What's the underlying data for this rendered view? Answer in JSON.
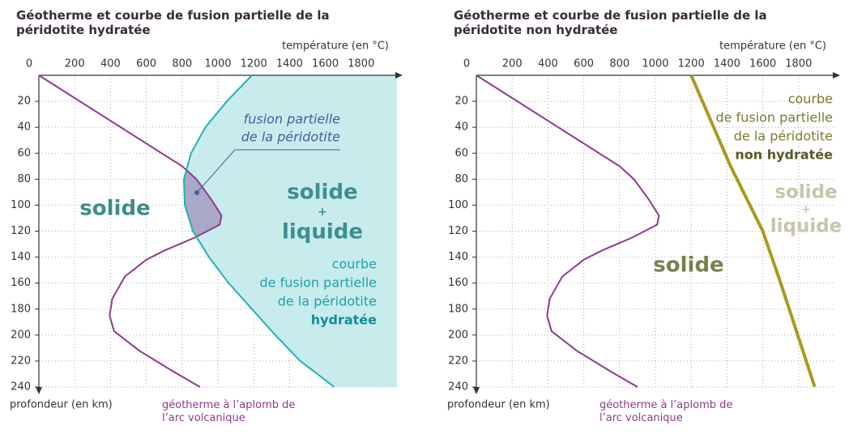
{
  "chart_data": [
    {
      "type": "line",
      "title": "Géotherme et courbe de fusion partielle de la péridotite hydratée",
      "xlabel": "température (en °C)",
      "ylabel": "profondeur (en km)",
      "xlim": [
        0,
        2000
      ],
      "ylim": [
        0,
        240
      ],
      "xticks": [
        0,
        200,
        400,
        600,
        800,
        1000,
        1200,
        1400,
        1600,
        1800
      ],
      "yticks": [
        20,
        40,
        60,
        80,
        100,
        120,
        140,
        160,
        180,
        200,
        220,
        240
      ],
      "grid": true,
      "series": [
        {
          "name": "géotherme à l’aplomb de l’arc volcanique",
          "color": "#8e3a8c",
          "x": [
            0,
            800,
            880,
            960,
            1020,
            1010,
            870,
            700,
            600,
            480,
            410,
            395,
            420,
            560,
            750,
            900
          ],
          "values": [
            0,
            70,
            80,
            95,
            108,
            115,
            125,
            135,
            142,
            155,
            172,
            185,
            197,
            212,
            228,
            240
          ]
        },
        {
          "name": "courbe de fusion partielle de la péridotite hydratée",
          "color": "#22b1b3",
          "fill": "#c8ebec",
          "label_lines": [
            "courbe",
            "de fusion partielle",
            "de la péridotite",
            "hydratée"
          ],
          "x": [
            1190,
            1050,
            930,
            850,
            810,
            815,
            860,
            950,
            1060,
            1190,
            1320,
            1460,
            1650
          ],
          "values": [
            0,
            20,
            40,
            60,
            80,
            100,
            120,
            140,
            160,
            180,
            200,
            220,
            240
          ]
        }
      ],
      "overlap_color": "#a9a8c6",
      "region_labels": [
        [
          "solide"
        ],
        [
          "solide",
          "+",
          "liquide"
        ]
      ],
      "overlap_label": [
        "fusion partielle",
        "de la péridotite"
      ]
    },
    {
      "type": "line",
      "title": "Géotherme et courbe de fusion partielle de la péridotite non hydratée",
      "xlabel": "température (en °C)",
      "ylabel": "profondeur (en km)",
      "xlim": [
        0,
        2000
      ],
      "ylim": [
        0,
        240
      ],
      "xticks": [
        0,
        200,
        400,
        600,
        800,
        1000,
        1200,
        1400,
        1600,
        1800
      ],
      "yticks": [
        20,
        40,
        60,
        80,
        100,
        120,
        140,
        160,
        180,
        200,
        220,
        240
      ],
      "grid": true,
      "series": [
        {
          "name": "géotherme à l’aplomb de l’arc volcanique",
          "color": "#8e3a8c",
          "x": [
            0,
            800,
            880,
            960,
            1020,
            1010,
            870,
            700,
            600,
            480,
            410,
            395,
            420,
            560,
            750,
            900
          ],
          "values": [
            0,
            70,
            80,
            95,
            108,
            115,
            125,
            135,
            142,
            155,
            172,
            185,
            197,
            212,
            228,
            240
          ]
        },
        {
          "name": "courbe de fusion partielle de la péridotite non hydratée",
          "color": "#a99a1e",
          "label_lines": [
            "courbe",
            "de fusion partielle",
            "de la péridotite",
            "non hydratée"
          ],
          "x": [
            1200,
            1420,
            1600,
            1700,
            1890
          ],
          "values": [
            0,
            70,
            120,
            160,
            240
          ]
        }
      ],
      "region_labels": [
        [
          "solide"
        ],
        [
          "solide",
          "+",
          "liquide"
        ]
      ]
    }
  ]
}
